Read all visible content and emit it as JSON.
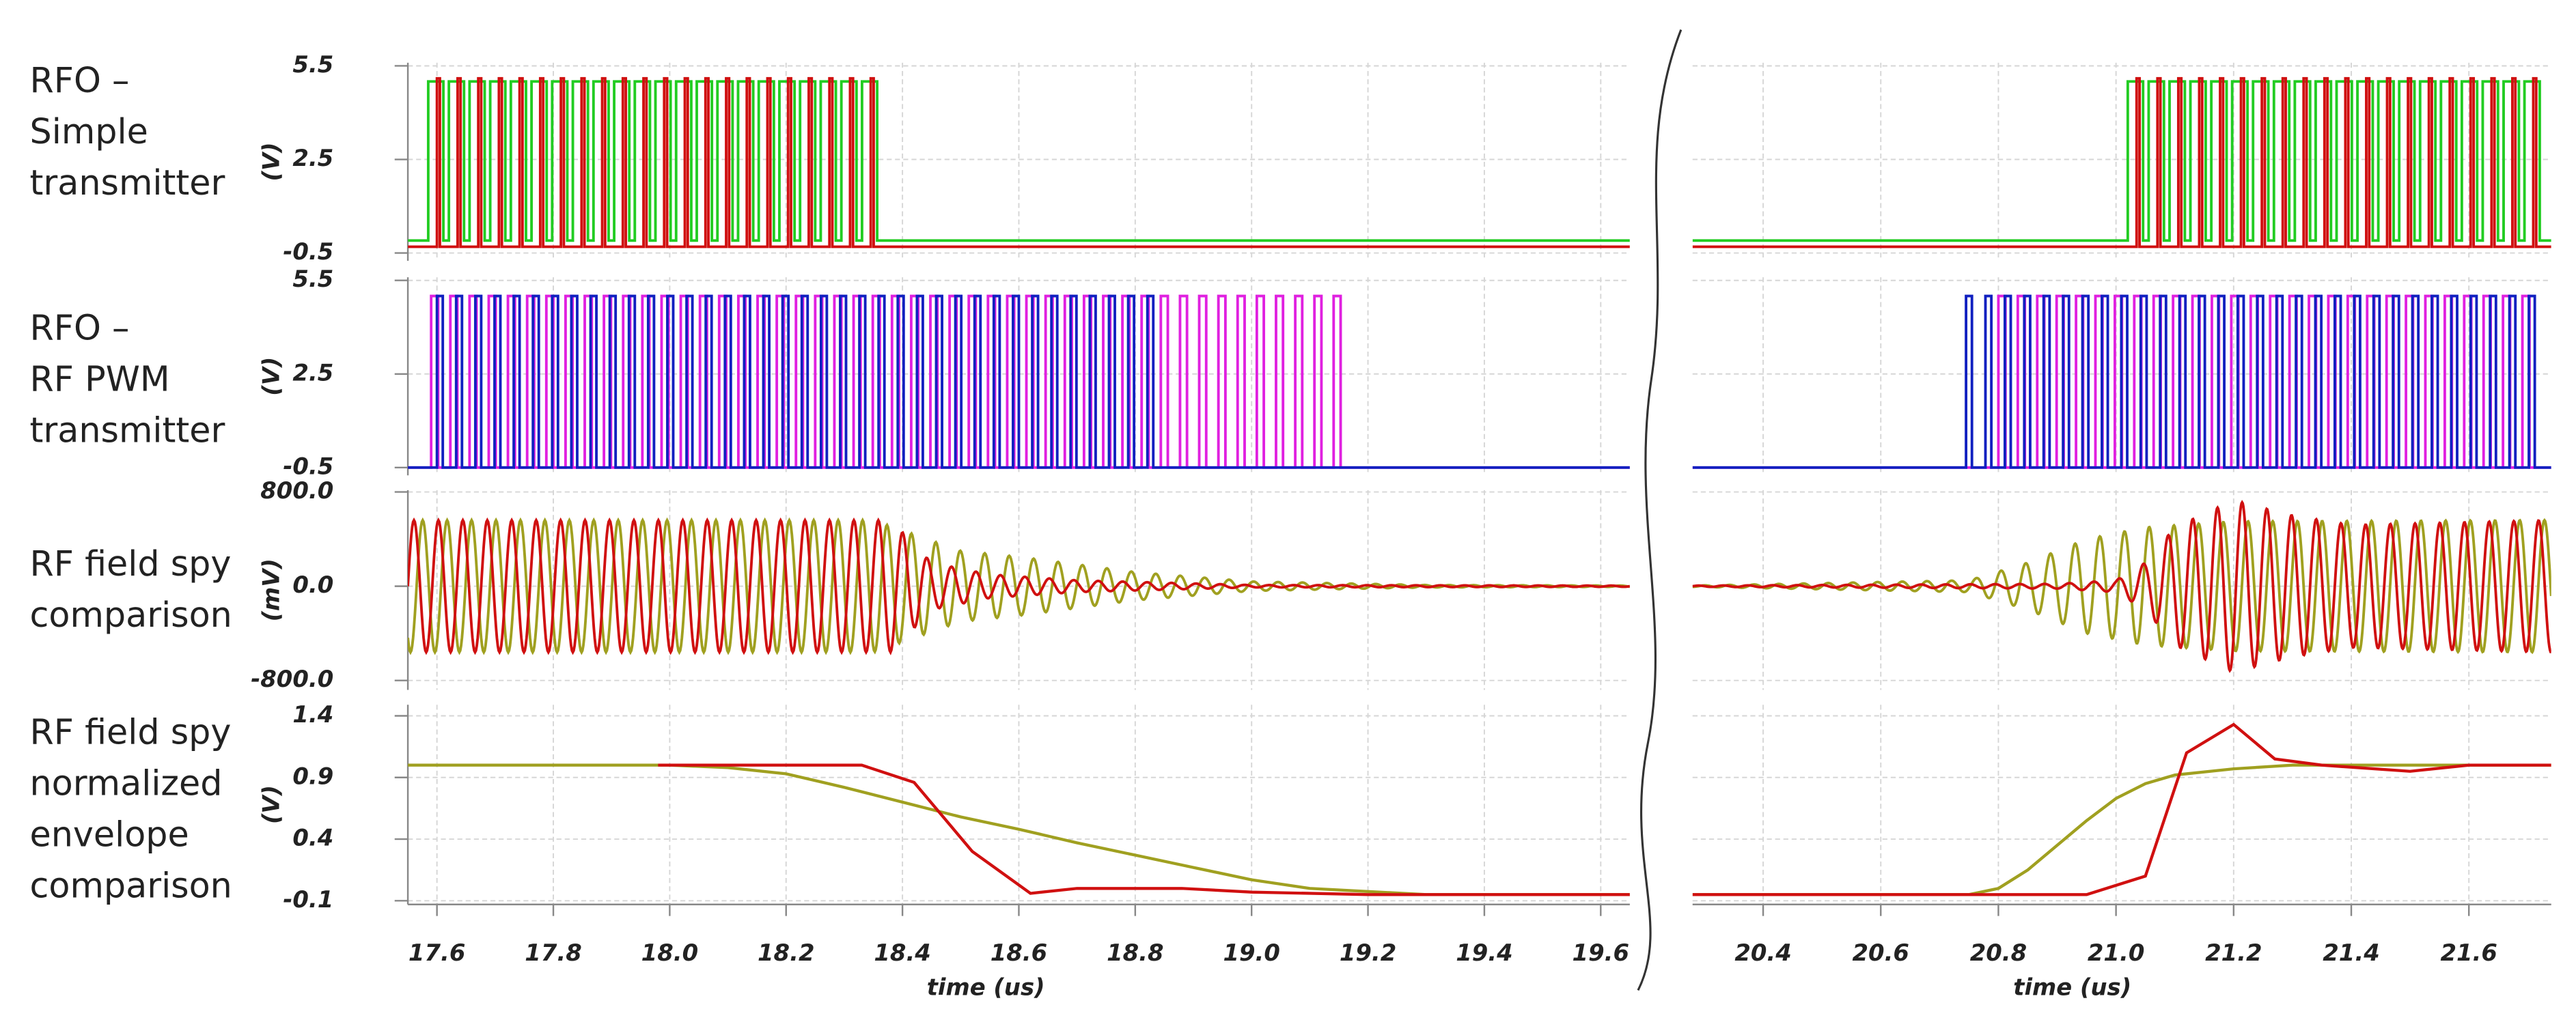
{
  "chart_data": [
    {
      "type": "pulse",
      "title_lines": [
        "RFO –",
        "Simple",
        "transmitter"
      ],
      "ylabel": "(V)",
      "xlim": [
        17.55,
        19.65
      ],
      "ylim": [
        -0.75,
        5.6
      ],
      "yticks": [
        5.5,
        2.5,
        -0.5
      ],
      "series": [
        {
          "color": "#22cc22",
          "start": 17.585,
          "period": 0.0355,
          "width": 0.026,
          "count": 22,
          "low": -0.1,
          "high": 5.0
        },
        {
          "color": "#d01010",
          "start": 17.6,
          "period": 0.0355,
          "width": 0.005,
          "count": 22,
          "low": -0.3,
          "high": 5.1
        }
      ]
    },
    {
      "type": "pulse",
      "xlim": [
        20.28,
        21.74
      ],
      "ylim": [
        -0.75,
        5.6
      ],
      "yticks": [
        5.5,
        2.5,
        -0.5
      ],
      "series": [
        {
          "color": "#22cc22",
          "start": 21.02,
          "period": 0.0355,
          "width": 0.026,
          "count": 20,
          "low": -0.1,
          "high": 5.0
        },
        {
          "color": "#d01010",
          "start": 21.035,
          "period": 0.0355,
          "width": 0.005,
          "count": 20,
          "low": -0.3,
          "high": 5.1
        }
      ]
    },
    {
      "type": "pulse",
      "title_lines": [
        "RFO –",
        "RF PWM",
        "transmitter"
      ],
      "ylabel": "(V)",
      "xlim": [
        17.55,
        19.65
      ],
      "ylim": [
        -0.75,
        5.6
      ],
      "yticks": [
        5.5,
        2.5,
        -0.5
      ],
      "series": [
        {
          "color": "#e020e0",
          "start": 17.59,
          "period": 0.033,
          "width": 0.012,
          "count": 48,
          "low": -0.5,
          "high": 5.0
        },
        {
          "color": "#1020c0",
          "start": 17.6,
          "period": 0.033,
          "width": 0.01,
          "count": 38,
          "low": -0.5,
          "high": 5.0
        }
      ]
    },
    {
      "type": "pulse",
      "xlim": [
        20.28,
        21.74
      ],
      "ylim": [
        -0.75,
        5.6
      ],
      "yticks": [
        5.5,
        2.5,
        -0.5
      ],
      "series": [
        {
          "color": "#e020e0",
          "start": 20.8,
          "period": 0.033,
          "width": 0.012,
          "count": 28,
          "low": -0.5,
          "high": 5.0
        },
        {
          "color": "#1020c0",
          "start": 20.745,
          "period": 0.033,
          "width": 0.01,
          "count": 30,
          "low": -0.5,
          "high": 5.0
        }
      ]
    },
    {
      "type": "burst",
      "title_lines": [
        "RF field spy",
        "comparison"
      ],
      "ylabel": "(mV)",
      "xlim": [
        17.55,
        19.65
      ],
      "ylim": [
        -880,
        815
      ],
      "yticks": [
        {
          "value": 800,
          "label": "800.0"
        },
        {
          "value": 0,
          "label": "0.0"
        },
        {
          "value": -800,
          "label": "-800.0"
        }
      ],
      "series": [
        {
          "color": "#a0a020",
          "period": 0.042,
          "phase": 17.565,
          "x": [
            17.55,
            18.35,
            18.5,
            18.6,
            18.8,
            19.0,
            19.3,
            19.65
          ],
          "values": [
            560,
            560,
            300,
            250,
            120,
            40,
            10,
            5
          ]
        },
        {
          "color": "#d01010",
          "period": 0.042,
          "phase": 17.55,
          "x": [
            17.55,
            18.38,
            18.45,
            18.55,
            18.7,
            19.0,
            19.65
          ],
          "values": [
            560,
            560,
            200,
            100,
            50,
            10,
            5
          ]
        }
      ]
    },
    {
      "type": "burst",
      "xlim": [
        20.28,
        21.74
      ],
      "ylim": [
        -880,
        815
      ],
      "yticks": [
        {
          "value": 800,
          "label": "800.0"
        },
        {
          "value": 0,
          "label": "0.0"
        },
        {
          "value": -800,
          "label": "-800.0"
        }
      ],
      "series": [
        {
          "color": "#a0a020",
          "period": 0.042,
          "phase": 20.29,
          "x": [
            20.28,
            20.75,
            20.85,
            20.95,
            21.05,
            21.2,
            21.74
          ],
          "values": [
            5,
            50,
            200,
            400,
            500,
            550,
            560
          ]
        },
        {
          "color": "#d01010",
          "period": 0.042,
          "phase": 20.28,
          "x": [
            20.28,
            20.9,
            21.0,
            21.05,
            21.1,
            21.2,
            21.3,
            21.4,
            21.74
          ],
          "values": [
            5,
            20,
            50,
            200,
            500,
            730,
            600,
            520,
            560
          ]
        }
      ]
    },
    {
      "type": "line",
      "title_lines": [
        "RF field spy",
        "normalized",
        "envelope",
        "comparison"
      ],
      "ylabel": "(V)",
      "xlabel": "time (us)",
      "xlim": [
        17.55,
        19.65
      ],
      "ylim": [
        -0.13,
        1.49
      ],
      "yticks": [
        1.4,
        0.9,
        0.4,
        -0.1
      ],
      "xticks": [
        17.6,
        17.8,
        {
          "value": 18,
          "label": "18.0"
        },
        18.2,
        18.4,
        18.6,
        18.8,
        {
          "value": 19,
          "label": "19.0"
        },
        19.2,
        19.4,
        19.6
      ],
      "series": [
        {
          "color": "#a0a020",
          "x": [
            17.55,
            18.0,
            18.1,
            18.2,
            18.3,
            18.4,
            18.5,
            18.6,
            18.7,
            18.8,
            18.9,
            19.0,
            19.1,
            19.3,
            19.65
          ],
          "values": [
            1.0,
            1.0,
            0.98,
            0.93,
            0.82,
            0.7,
            0.58,
            0.48,
            0.37,
            0.27,
            0.17,
            0.07,
            0.0,
            -0.05,
            -0.05
          ]
        },
        {
          "color": "#d01010",
          "x": [
            17.98,
            18.33,
            18.42,
            18.52,
            18.62,
            18.7,
            18.88,
            19.0,
            19.2,
            19.65
          ],
          "values": [
            1.0,
            1.0,
            0.86,
            0.3,
            -0.04,
            0.0,
            0.0,
            -0.03,
            -0.05,
            -0.05
          ]
        }
      ]
    },
    {
      "type": "line",
      "xlabel": "time (us)",
      "xlim": [
        20.28,
        21.74
      ],
      "ylim": [
        -0.13,
        1.49
      ],
      "yticks": [
        1.4,
        0.9,
        0.4,
        -0.1
      ],
      "xticks": [
        20.4,
        20.6,
        20.8,
        {
          "value": 21,
          "label": "21.0"
        },
        21.2,
        21.4,
        21.6
      ],
      "series": [
        {
          "color": "#a0a020",
          "x": [
            20.28,
            20.75,
            20.8,
            20.85,
            20.9,
            20.95,
            21.0,
            21.05,
            21.1,
            21.2,
            21.3,
            21.74
          ],
          "values": [
            -0.05,
            -0.05,
            0.0,
            0.15,
            0.35,
            0.55,
            0.73,
            0.85,
            0.92,
            0.97,
            1.0,
            1.0
          ]
        },
        {
          "color": "#d01010",
          "x": [
            20.28,
            20.95,
            21.05,
            21.12,
            21.2,
            21.27,
            21.35,
            21.5,
            21.6,
            21.74
          ],
          "values": [
            -0.05,
            -0.05,
            0.1,
            1.1,
            1.33,
            1.05,
            1.0,
            0.95,
            1.0,
            1.0
          ]
        }
      ]
    }
  ]
}
